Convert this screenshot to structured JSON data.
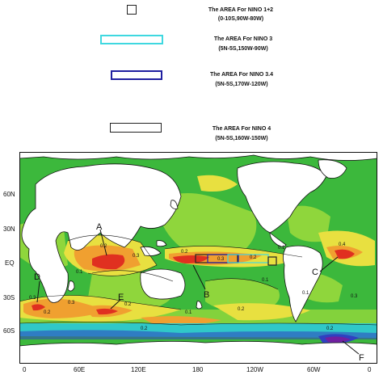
{
  "legend": {
    "nino12": {
      "title": "The AREA  For NINO 1+2",
      "range": "(0-10S,90W-80W)",
      "color": "#222222"
    },
    "nino3": {
      "title": "The AREA  For NINO 3",
      "range": "(5N-5S,150W-90W)",
      "color": "#3fd8e0"
    },
    "nino34": {
      "title": "The AREA  For NINO 3.4",
      "range": "(5N-5S,170W-120W)",
      "color": "#2020a0"
    },
    "nino4": {
      "title": "The AREA  For NINO 4",
      "range": "(5N-5S,160W-150W)",
      "color": "#222222"
    }
  },
  "axes": {
    "lat": [
      "60N",
      "30N",
      "EQ",
      "30S",
      "60S"
    ],
    "lon": [
      "0",
      "60E",
      "120E",
      "180",
      "120W",
      "60W",
      "0"
    ]
  },
  "markers": [
    "A",
    "B",
    "C",
    "D",
    "E",
    "F"
  ],
  "contour_values": [
    "0.1",
    "0.2",
    "0.3",
    "0.4"
  ],
  "colors": {
    "land": "#ffffff",
    "ocean_base": "#3cb83c",
    "light_green": "#8fd63c",
    "yellow": "#e8e040",
    "orange": "#f0a030",
    "red": "#e03020",
    "cyan": "#30c8c8",
    "blue": "#3040c0",
    "purple": "#7020a0"
  }
}
